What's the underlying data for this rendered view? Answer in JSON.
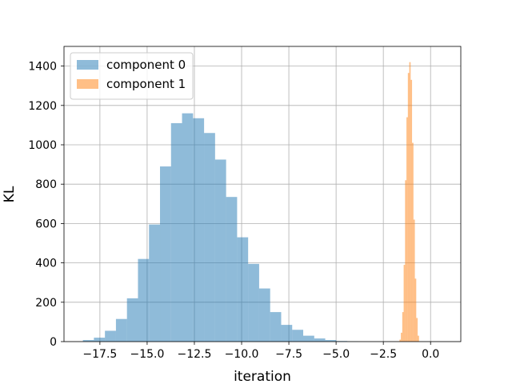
{
  "chart_data": {
    "type": "histogram",
    "xlabel": "iteration",
    "ylabel": "KL",
    "xlim": [
      -19.4,
      1.6
    ],
    "ylim": [
      0,
      1500
    ],
    "grid": true,
    "legend_position": "top-left",
    "x_ticks": [
      -17.5,
      -15.0,
      -12.5,
      -10.0,
      -7.5,
      -5.0,
      -2.5,
      0.0
    ],
    "x_tick_labels": [
      "−17.5",
      "−15.0",
      "−12.5",
      "−10.0",
      "−7.5",
      "−5.0",
      "−2.5",
      "0.0"
    ],
    "y_ticks": [
      0,
      200,
      400,
      600,
      800,
      1000,
      1200,
      1400
    ],
    "y_tick_labels": [
      "0",
      "200",
      "400",
      "600",
      "800",
      "1000",
      "1200",
      "1400"
    ],
    "series": [
      {
        "name": "component 0",
        "color": "#1f77b4",
        "alpha": 0.5,
        "bin_start": -18.4,
        "bin_width": 0.583,
        "counts": [
          8,
          20,
          55,
          115,
          220,
          420,
          595,
          890,
          1110,
          1160,
          1135,
          1060,
          925,
          735,
          530,
          395,
          270,
          150,
          85,
          60,
          30,
          16,
          8,
          3,
          1,
          0,
          0,
          0,
          0,
          0,
          0,
          0,
          0,
          0,
          0,
          0
        ]
      },
      {
        "name": "component 1",
        "color": "#ff7f0e",
        "alpha": 0.5,
        "bin_start": -1.72,
        "bin_width": 0.074,
        "counts": [
          2,
          10,
          45,
          150,
          390,
          820,
          1140,
          1365,
          1420,
          1330,
          1010,
          620,
          320,
          120,
          30
        ]
      }
    ]
  }
}
